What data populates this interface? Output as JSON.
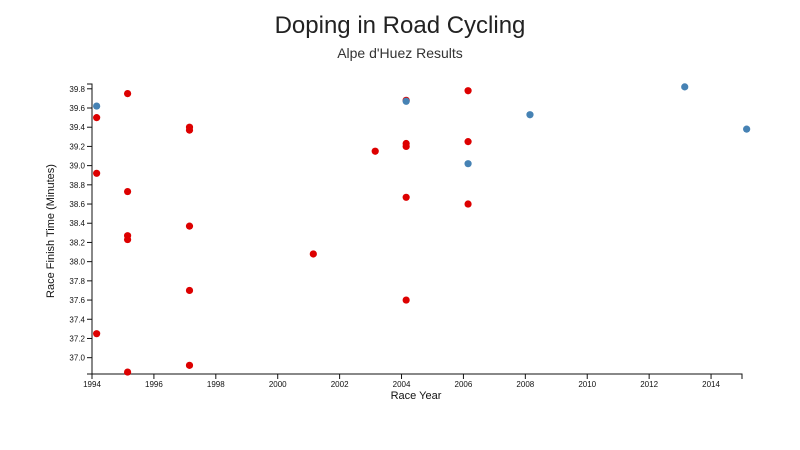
{
  "chart_data": {
    "type": "scatter",
    "title": "Doping in Road Cycling",
    "subtitle": "Alpe d'Huez Results",
    "xlabel": "Race Year",
    "ylabel": "Race Finish Time (Minutes)",
    "xlim": [
      1994,
      2015
    ],
    "ylim": [
      36.83,
      39.85
    ],
    "xticks": [
      "1994",
      "1996",
      "1998",
      "2000",
      "2002",
      "2004",
      "2006",
      "2008",
      "2010",
      "2012",
      "2014"
    ],
    "yticks": [
      "37.0",
      "37.2",
      "37.4",
      "37.6",
      "37.8",
      "38.0",
      "38.2",
      "38.4",
      "38.6",
      "38.8",
      "39.0",
      "39.2",
      "39.4",
      "39.6",
      "39.8"
    ],
    "colors": {
      "doping": "#dd0000",
      "clean": "#4682b4"
    },
    "series": [
      {
        "key": "doping",
        "points": [
          {
            "x": 1994.15,
            "y": 39.5
          },
          {
            "x": 1994.15,
            "y": 38.92
          },
          {
            "x": 1994.15,
            "y": 37.25
          },
          {
            "x": 1995.15,
            "y": 39.75
          },
          {
            "x": 1995.15,
            "y": 38.73
          },
          {
            "x": 1995.15,
            "y": 38.27
          },
          {
            "x": 1995.15,
            "y": 38.23
          },
          {
            "x": 1995.15,
            "y": 36.85
          },
          {
            "x": 1997.15,
            "y": 39.4
          },
          {
            "x": 1997.15,
            "y": 39.37
          },
          {
            "x": 1997.15,
            "y": 38.37
          },
          {
            "x": 1997.15,
            "y": 37.7
          },
          {
            "x": 1997.15,
            "y": 36.92
          },
          {
            "x": 2001.15,
            "y": 38.08
          },
          {
            "x": 2003.15,
            "y": 39.15
          },
          {
            "x": 2004.15,
            "y": 39.68
          },
          {
            "x": 2004.15,
            "y": 39.23
          },
          {
            "x": 2004.15,
            "y": 39.2
          },
          {
            "x": 2004.15,
            "y": 38.67
          },
          {
            "x": 2004.15,
            "y": 37.6
          },
          {
            "x": 2006.15,
            "y": 39.78
          },
          {
            "x": 2006.15,
            "y": 39.25
          },
          {
            "x": 2006.15,
            "y": 38.6
          }
        ]
      },
      {
        "key": "clean",
        "points": [
          {
            "x": 1994.15,
            "y": 39.62
          },
          {
            "x": 2004.15,
            "y": 39.67
          },
          {
            "x": 2006.15,
            "y": 39.02
          },
          {
            "x": 2008.15,
            "y": 39.53
          },
          {
            "x": 2013.15,
            "y": 39.82
          },
          {
            "x": 2015.15,
            "y": 39.38
          }
        ]
      }
    ]
  }
}
